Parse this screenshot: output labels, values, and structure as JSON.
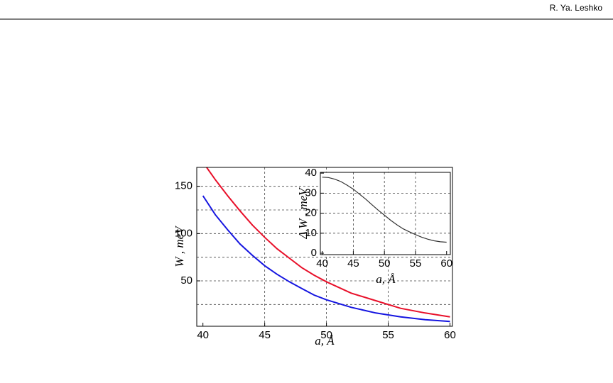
{
  "header": {
    "author": "R. Ya. Leshko"
  },
  "chart_data": [
    {
      "type": "line",
      "xlabel": "a, Å",
      "ylabel": "W , meV",
      "xlim": [
        39.5,
        60.2
      ],
      "ylim": [
        2,
        170
      ],
      "xticks": [
        40,
        45,
        50,
        55,
        60
      ],
      "yticks": [
        50,
        100,
        150
      ],
      "x_grid": [
        45,
        50,
        55
      ],
      "y_grid": [
        25,
        50,
        75,
        100,
        125,
        150
      ],
      "grid": true,
      "series": [
        {
          "color": "#e8102a",
          "x": [
            40.3,
            41,
            42,
            43,
            44,
            45,
            46,
            47,
            48,
            49,
            50,
            52,
            54,
            56,
            58,
            60
          ],
          "values": [
            170,
            157,
            140,
            124,
            109,
            96,
            84,
            74,
            64,
            56,
            49,
            37,
            29,
            21,
            16,
            12
          ]
        },
        {
          "color": "#1515e0",
          "x": [
            40,
            41,
            42,
            43,
            44,
            45,
            46,
            47,
            48,
            49,
            50,
            52,
            54,
            56,
            58,
            60
          ],
          "values": [
            140,
            120,
            104,
            89,
            77,
            66,
            57,
            49,
            42,
            35,
            30,
            22,
            16,
            12,
            9,
            7
          ]
        }
      ]
    },
    {
      "type": "line",
      "xlabel": "a, Å",
      "ylabel": "Δ W , meV",
      "xlim": [
        39.7,
        60.6
      ],
      "ylim": [
        -0.7,
        40.4
      ],
      "xticks": [
        40,
        45,
        50,
        55,
        60
      ],
      "yticks": [
        0,
        10,
        20,
        30,
        40
      ],
      "x_grid": [
        45,
        50,
        55
      ],
      "y_grid": [
        10,
        20,
        30
      ],
      "grid": true,
      "series": [
        {
          "color": "#333333",
          "x": [
            40,
            41,
            42,
            43,
            44,
            45,
            46,
            47,
            48,
            49,
            50,
            51,
            52,
            53,
            54,
            55,
            56,
            57,
            58,
            59,
            60
          ],
          "values": [
            38,
            37.8,
            37,
            35.8,
            34,
            32,
            29.5,
            27,
            24.2,
            21.5,
            19,
            16.5,
            14.2,
            12.2,
            10.7,
            9.3,
            8,
            7,
            6.2,
            5.7,
            5.5
          ]
        }
      ]
    }
  ]
}
